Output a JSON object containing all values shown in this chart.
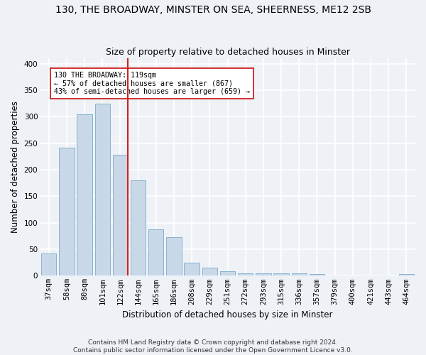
{
  "title_line1": "130, THE BROADWAY, MINSTER ON SEA, SHEERNESS, ME12 2SB",
  "title_line2": "Size of property relative to detached houses in Minster",
  "xlabel": "Distribution of detached houses by size in Minster",
  "ylabel": "Number of detached properties",
  "categories": [
    "37sqm",
    "58sqm",
    "80sqm",
    "101sqm",
    "122sqm",
    "144sqm",
    "165sqm",
    "186sqm",
    "208sqm",
    "229sqm",
    "251sqm",
    "272sqm",
    "293sqm",
    "315sqm",
    "336sqm",
    "357sqm",
    "379sqm",
    "400sqm",
    "421sqm",
    "443sqm",
    "464sqm"
  ],
  "values": [
    42,
    241,
    305,
    325,
    228,
    180,
    88,
    73,
    25,
    15,
    9,
    4,
    4,
    4,
    4,
    3,
    0,
    0,
    0,
    0,
    3
  ],
  "bar_color": "#c8d8e8",
  "bar_edge_color": "#7aaac8",
  "vline_index": 4,
  "vline_color": "#cc2222",
  "annotation_text": "130 THE BROADWAY: 119sqm\n← 57% of detached houses are smaller (867)\n43% of semi-detached houses are larger (659) →",
  "annotation_box_color": "#ffffff",
  "annotation_box_edge": "#cc2222",
  "ylim": [
    0,
    410
  ],
  "yticks": [
    0,
    50,
    100,
    150,
    200,
    250,
    300,
    350,
    400
  ],
  "footnote": "Contains HM Land Registry data © Crown copyright and database right 2024.\nContains public sector information licensed under the Open Government Licence v3.0.",
  "bg_color": "#eef2f7",
  "grid_color": "#ffffff",
  "title_fontsize": 10,
  "subtitle_fontsize": 9,
  "axis_label_fontsize": 8.5,
  "tick_fontsize": 7.5,
  "footnote_fontsize": 6.5
}
